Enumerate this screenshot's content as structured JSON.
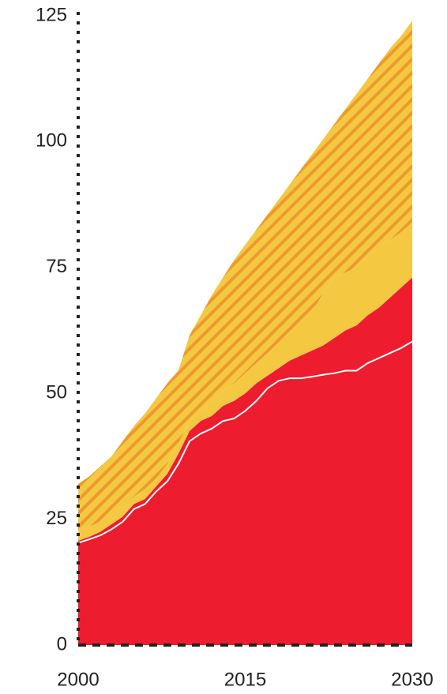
{
  "chart_data": {
    "type": "area",
    "x": [
      2000,
      2001,
      2002,
      2003,
      2004,
      2005,
      2006,
      2007,
      2008,
      2009,
      2010,
      2011,
      2012,
      2013,
      2014,
      2015,
      2016,
      2017,
      2018,
      2019,
      2020,
      2021,
      2022,
      2023,
      2024,
      2025,
      2026,
      2027,
      2028,
      2029,
      2030
    ],
    "xlim": [
      2000,
      2030
    ],
    "xticks": [
      2000,
      2015,
      2030
    ],
    "ylim": [
      0,
      125
    ],
    "yticks": [
      0,
      25,
      50,
      75,
      100,
      125
    ],
    "series": [
      {
        "kind": "area",
        "color": "#ed1c2e",
        "values": [
          20.7,
          21.5,
          22.5,
          24,
          25.5,
          28,
          29,
          31.5,
          34,
          38,
          42.5,
          44.5,
          45.5,
          47.5,
          48.5,
          50,
          52,
          53.5,
          55,
          56.5,
          57.5,
          58.5,
          59.5,
          61,
          62.5,
          63.5,
          65.5,
          67,
          69,
          71,
          73
        ]
      },
      {
        "kind": "area",
        "color": "#f5c842",
        "values": [
          1.8,
          2,
          2,
          2,
          2,
          1.5,
          2,
          1.5,
          2,
          2,
          2,
          2,
          3,
          3,
          3.5,
          4,
          4,
          4.5,
          5,
          5.5,
          6.5,
          7.5,
          10.5,
          12,
          11.5,
          11.5,
          11.5,
          12,
          11.5,
          11,
          11
        ]
      },
      {
        "kind": "area",
        "color": "#f5c842",
        "pattern": "hatch",
        "hatch_color": "#ec9a2c",
        "values": [
          9.5,
          10,
          11,
          11.5,
          13,
          14,
          15,
          16,
          16,
          14.5,
          17,
          19,
          21,
          22.5,
          24.5,
          25.5,
          26.5,
          27.5,
          28.5,
          29.5,
          30.5,
          31.5,
          30.5,
          30.5,
          32.5,
          34.5,
          35.5,
          36.5,
          38,
          39,
          40
        ]
      },
      {
        "kind": "line",
        "color": "#ffffff",
        "values": [
          20.3,
          21,
          21.8,
          23,
          24.5,
          27,
          28,
          30.5,
          32.5,
          36,
          40.5,
          42,
          43,
          44.5,
          45,
          46.5,
          48.5,
          51,
          52.5,
          53,
          53,
          53.3,
          53.7,
          54,
          54.5,
          54.5,
          56,
          57,
          58,
          59,
          60.3
        ]
      }
    ]
  }
}
